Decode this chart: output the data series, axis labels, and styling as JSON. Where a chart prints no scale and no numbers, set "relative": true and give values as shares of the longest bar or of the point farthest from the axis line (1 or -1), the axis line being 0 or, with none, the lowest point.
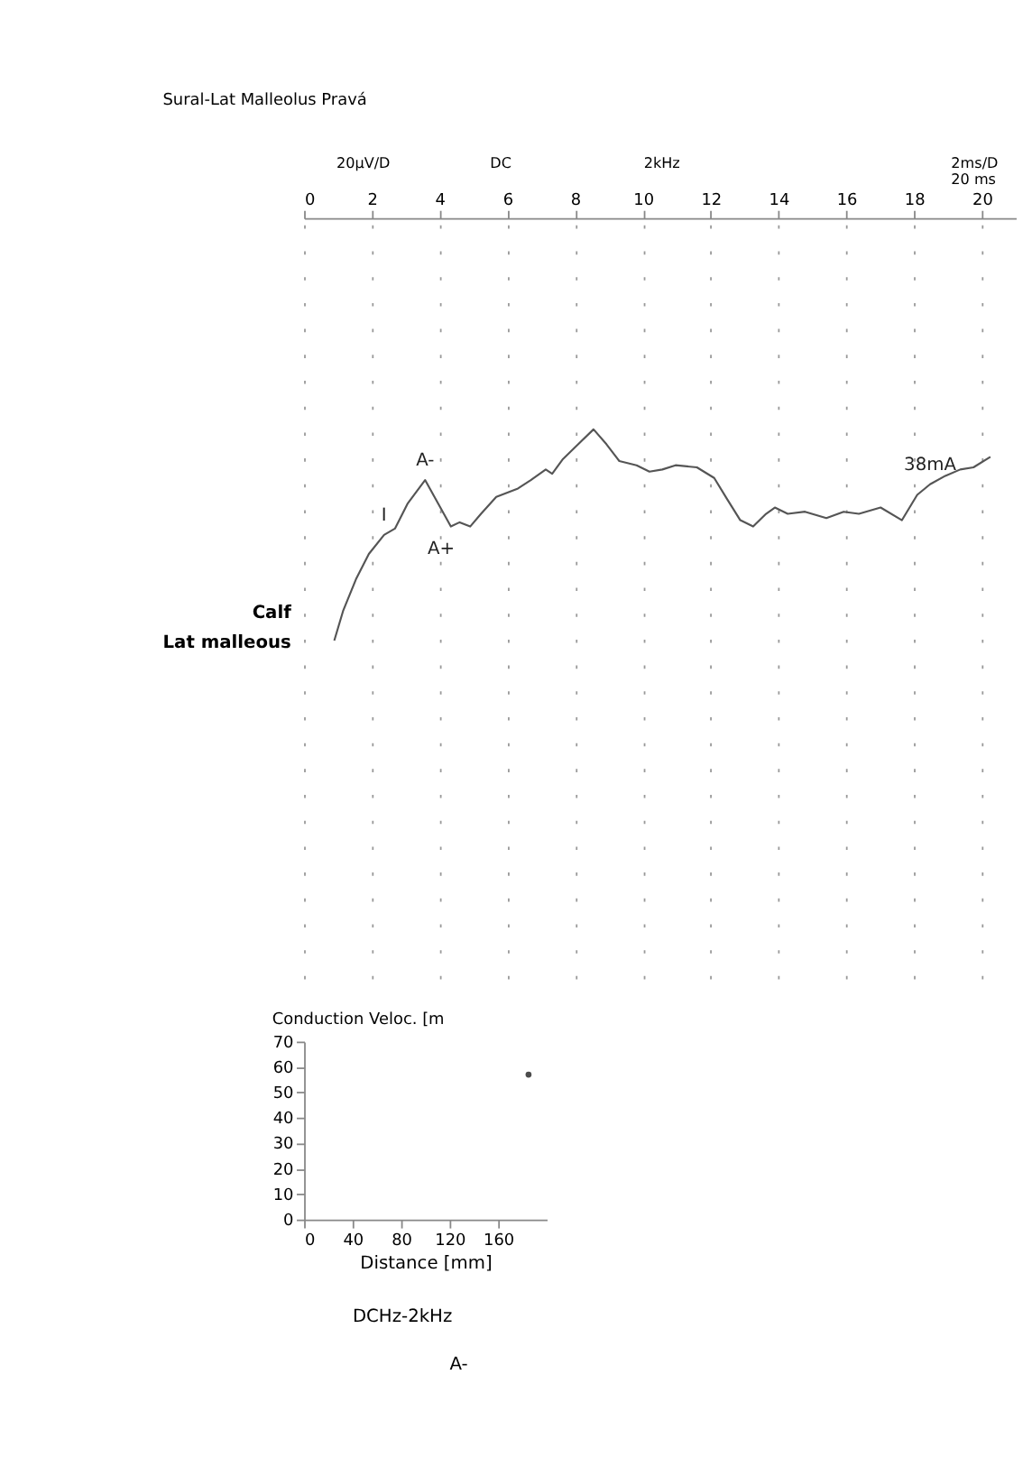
{
  "chart_data": [
    {
      "type": "line",
      "title": "Sural-Lat Malleolus Pravá",
      "relative": true,
      "grid": "x",
      "legend": false,
      "marker": "none",
      "line_style": "solid",
      "xlim": [
        0,
        21
      ],
      "xticks": [
        0,
        2,
        4,
        6,
        8,
        10,
        12,
        14,
        16,
        18,
        20
      ],
      "series": [
        {
          "color": "#555555",
          "x": [
            0.89,
            1.15,
            1.53,
            1.91,
            2.36,
            2.68,
            3.06,
            3.57,
            3.95,
            4.33,
            4.59,
            4.9,
            5.22,
            5.67,
            6.31,
            6.69,
            7.13,
            7.32,
            7.64,
            8.09,
            8.54,
            8.92,
            9.3,
            9.81,
            10.19,
            10.57,
            10.96,
            11.59,
            12.1,
            12.48,
            12.87,
            13.25,
            13.63,
            13.89,
            14.27,
            14.78,
            15.41,
            15.92,
            16.37,
            17.01,
            17.64,
            18.09,
            18.47,
            18.92,
            19.36,
            19.75,
            20.25
          ],
          "values": [
            0,
            0.14,
            0.29,
            0.41,
            0.5,
            0.53,
            0.65,
            0.76,
            0.65,
            0.54,
            0.56,
            0.54,
            0.6,
            0.68,
            0.72,
            0.76,
            0.81,
            0.79,
            0.86,
            0.93,
            1,
            0.93,
            0.85,
            0.83,
            0.8,
            0.81,
            0.83,
            0.82,
            0.77,
            0.67,
            0.57,
            0.54,
            0.6,
            0.63,
            0.6,
            0.61,
            0.58,
            0.61,
            0.6,
            0.63,
            0.57,
            0.69,
            0.74,
            0.78,
            0.81,
            0.82,
            0.87
          ]
        }
      ],
      "annotations": [
        "Calf",
        "Lat malleous",
        "20µV/D",
        "DC",
        "2kHz",
        "2ms/D",
        "20 ms",
        {
          "text": "I",
          "x": 2.36,
          "y": 0.5
        },
        {
          "text": "A-",
          "x": 3.57,
          "y": 0.76
        },
        {
          "text": "A+",
          "x": 4.33,
          "y": 0.54
        },
        {
          "text": "38mA",
          "x": 18.47,
          "y": 0.74
        }
      ]
    },
    {
      "type": "scatter",
      "title": "Conduction Veloc. [m",
      "xlabel": "Distance [mm]",
      "grid": false,
      "legend": false,
      "marker": "circle",
      "xlim": [
        0,
        200
      ],
      "xticks": [
        0,
        40,
        80,
        120,
        160
      ],
      "ylim": [
        0,
        70
      ],
      "yticks": [
        0,
        10,
        20,
        30,
        40,
        50,
        60,
        70
      ],
      "series": [
        {
          "color": "#000000",
          "x": [
            185
          ],
          "values": [
            57
          ]
        }
      ],
      "annotations": [
        "DCHz-2kHz",
        "A-"
      ]
    }
  ]
}
